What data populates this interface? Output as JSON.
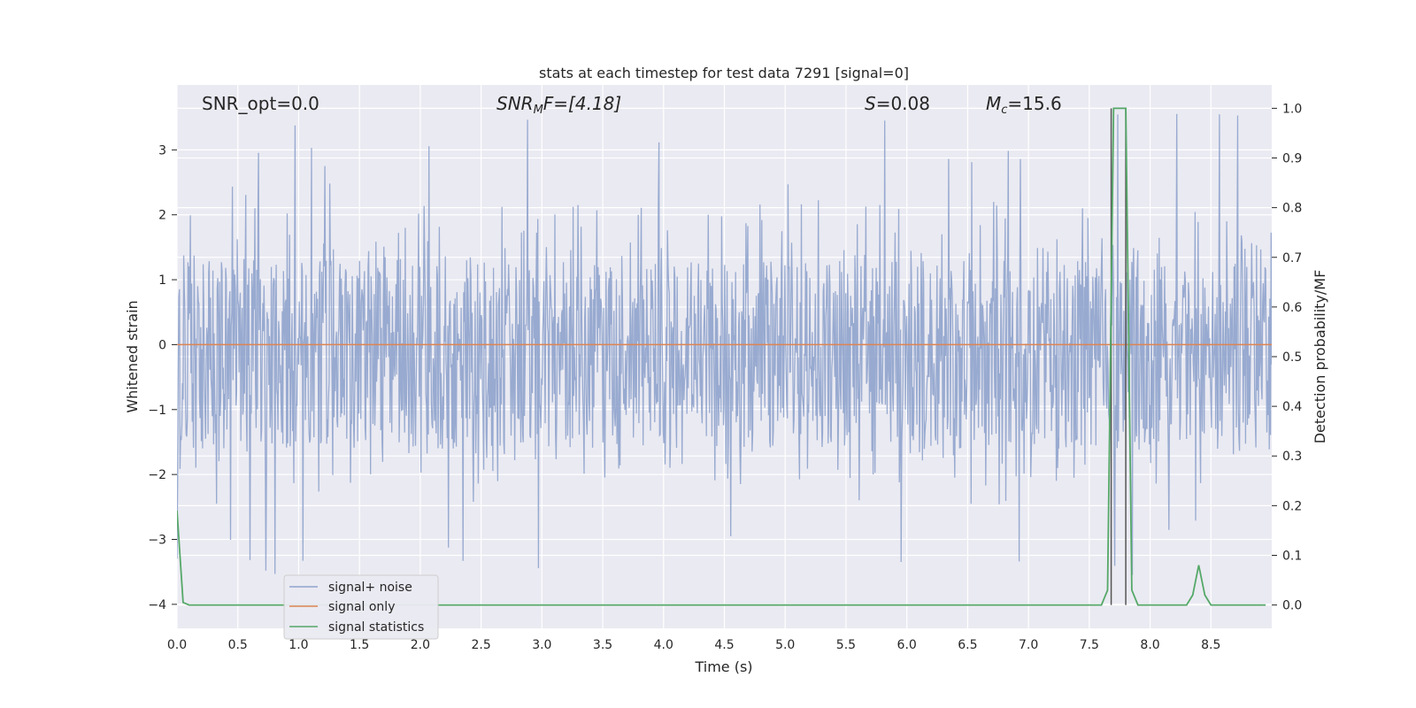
{
  "chart_data": {
    "type": "line",
    "title": "stats at each timestep for test data 7291 [signal=0]",
    "xlabel": "Time (s)",
    "ylabel": "Whitened strain",
    "y2label": "Detection probability/MF",
    "xlim": [
      0.0,
      9.0
    ],
    "ylim": [
      -4.37,
      4.0
    ],
    "y2lim": [
      -0.047,
      1.047
    ],
    "xticks": [
      "0.0",
      "0.5",
      "1.0",
      "1.5",
      "2.0",
      "2.5",
      "3.0",
      "3.5",
      "4.0",
      "4.5",
      "5.0",
      "5.5",
      "6.0",
      "6.5",
      "7.0",
      "7.5",
      "8.0",
      "8.5"
    ],
    "yticks": [
      "3",
      "2",
      "1",
      "0",
      "−1",
      "−2",
      "−3",
      "−4"
    ],
    "y2ticks": [
      "1.0",
      "0.9",
      "0.8",
      "0.7",
      "0.6",
      "0.5",
      "0.4",
      "0.3",
      "0.2",
      "0.1",
      "0.0"
    ],
    "grid": true,
    "legend_position": "lower-left",
    "annotations": {
      "snr_opt": "SNR_opt=0.0",
      "snr_mf": "SNR",
      "snr_mf_sub": "M",
      "snr_mf_tail": "F=[4.18]",
      "s_label": "S",
      "s_value": "=0.08",
      "mc_label": "M",
      "mc_sub": "c",
      "mc_value": "=15.6"
    },
    "series": [
      {
        "name": "signal+ noise",
        "color": "#8fa3cc",
        "description_type": "noise",
        "core_range": [
          -1.6,
          1.3
        ],
        "spike_range": [
          -3.6,
          3.6
        ]
      },
      {
        "name": "signal only",
        "color": "#dd8452",
        "x": [
          0.0,
          9.0
        ],
        "values": [
          0.0,
          0.0
        ]
      },
      {
        "name": "signal statistics",
        "color": "#55a868",
        "axis": "right",
        "x": [
          0.0,
          0.05,
          0.1,
          0.15,
          0.2,
          7.55,
          7.6,
          7.65,
          7.7,
          7.75,
          7.8,
          7.85,
          7.9,
          7.95,
          8.0,
          8.3,
          8.35,
          8.4,
          8.45,
          8.5,
          8.55,
          8.6,
          8.95
        ],
        "values": [
          0.19,
          0.005,
          0.0,
          0.0,
          0.0,
          0.0,
          0.0,
          0.03,
          1.0,
          1.0,
          1.0,
          0.03,
          0.0,
          0.0,
          0.0,
          0.0,
          0.02,
          0.08,
          0.02,
          0.0,
          0.0,
          0.0,
          0.0
        ]
      }
    ],
    "vertical_markers": [
      7.68,
      7.8
    ]
  }
}
